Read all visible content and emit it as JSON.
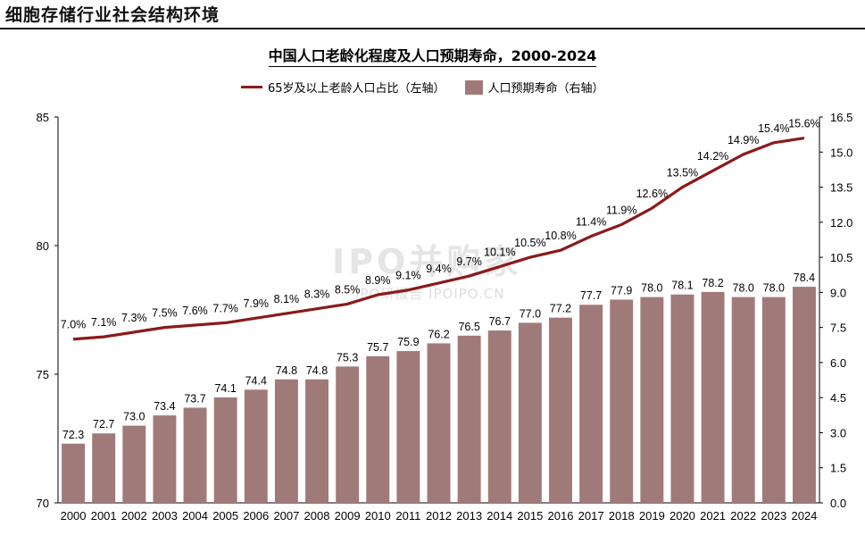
{
  "header": {
    "section_title": "细胞存储行业社会结构环境"
  },
  "watermark": {
    "main": "IPO并购家",
    "sub": "IPO研报告 IPOIPO.CN"
  },
  "chart_data": {
    "type": "bar+line",
    "title": "中国人口老龄化程度及人口预期寿命，2000-2024",
    "categories": [
      "2000",
      "2001",
      "2002",
      "2003",
      "2004",
      "2005",
      "2006",
      "2007",
      "2008",
      "2009",
      "2010",
      "2011",
      "2012",
      "2013",
      "2014",
      "2015",
      "2016",
      "2017",
      "2018",
      "2019",
      "2020",
      "2021",
      "2022",
      "2023",
      "2024"
    ],
    "series": [
      {
        "name": "人口预期寿命（右轴）",
        "type": "bar",
        "axis": "left",
        "values": [
          72.3,
          72.7,
          73.0,
          73.4,
          73.7,
          74.1,
          74.4,
          74.8,
          74.8,
          75.3,
          75.7,
          75.9,
          76.2,
          76.5,
          76.7,
          77.0,
          77.2,
          77.7,
          77.9,
          78.0,
          78.1,
          78.2,
          78.0,
          78.0,
          78.4
        ],
        "labels": [
          "72.3",
          "72.7",
          "73.0",
          "73.4",
          "73.7",
          "74.1",
          "74.4",
          "74.8",
          "74.8",
          "75.3",
          "75.7",
          "75.9",
          "76.2",
          "76.5",
          "76.7",
          "77.0",
          "77.2",
          "77.7",
          "77.9",
          "78.0",
          "78.1",
          "78.2",
          "78.0",
          "78.0",
          "78.4"
        ]
      },
      {
        "name": "65岁及以上老龄人口占比（左轴）",
        "type": "line",
        "axis": "right",
        "values": [
          7.0,
          7.1,
          7.3,
          7.5,
          7.6,
          7.7,
          7.9,
          8.1,
          8.3,
          8.5,
          8.9,
          9.1,
          9.4,
          9.7,
          10.1,
          10.5,
          10.8,
          11.4,
          11.9,
          12.6,
          13.5,
          14.2,
          14.9,
          15.4,
          15.6
        ],
        "labels": [
          "7.0%",
          "7.1%",
          "7.3%",
          "7.5%",
          "7.6%",
          "7.7%",
          "7.9%",
          "8.1%",
          "8.3%",
          "8.5%",
          "8.9%",
          "9.1%",
          "9.4%",
          "9.7%",
          "10.1%",
          "10.5%",
          "10.8%",
          "11.4%",
          "11.9%",
          "12.6%",
          "13.5%",
          "14.2%",
          "14.9%",
          "15.4%",
          "15.6%"
        ]
      }
    ],
    "left_axis": {
      "ylim": [
        70,
        85
      ],
      "ticks": [
        "70",
        "75",
        "80",
        "85"
      ],
      "tick_values": [
        70,
        75,
        80,
        85
      ]
    },
    "right_axis": {
      "ylim": [
        0,
        16.5
      ],
      "ticks": [
        "0.0",
        "1.5",
        "3.0",
        "4.5",
        "6.0",
        "7.5",
        "9.0",
        "10.5",
        "12.0",
        "13.5",
        "15.0",
        "16.5"
      ],
      "tick_values": [
        0,
        1.5,
        3,
        4.5,
        6,
        7.5,
        9,
        10.5,
        12,
        13.5,
        15,
        16.5
      ]
    },
    "legend": [
      "65岁及以上老龄人口占比（左轴）",
      "人口预期寿命（右轴）"
    ],
    "legend_position": "top",
    "grid": false,
    "colors": {
      "bar": "#a07a79",
      "line": "#8b1a1a",
      "axis": "#000000"
    }
  }
}
